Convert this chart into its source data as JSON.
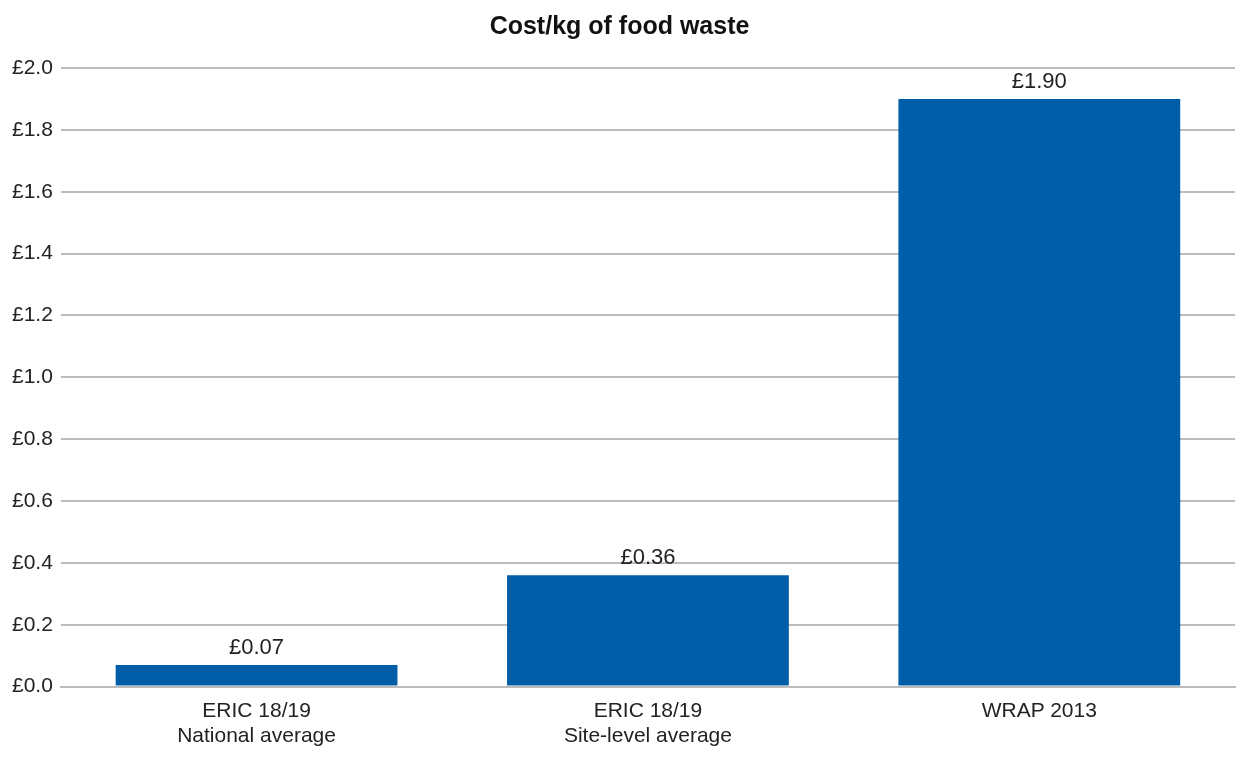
{
  "chart_data": {
    "type": "bar",
    "title": "Cost/kg of food waste",
    "categories": [
      "ERIC 18/19\nNational average",
      "ERIC 18/19\nSite-level average",
      "WRAP 2013"
    ],
    "values": [
      0.07,
      0.36,
      1.9
    ],
    "value_labels": [
      "£0.07",
      "£0.36",
      "£1.90"
    ],
    "color": "#005ea8",
    "ylim": [
      0,
      2
    ],
    "yticks": [
      {
        "value": 0,
        "label": "£0.0"
      },
      {
        "value": 0.2,
        "label": "£0.2"
      },
      {
        "value": 0.4,
        "label": "£0.4"
      },
      {
        "value": 0.6,
        "label": "£0.6"
      },
      {
        "value": 0.8,
        "label": "£0.8"
      },
      {
        "value": 1,
        "label": "£1.0"
      },
      {
        "value": 1.2,
        "label": "£1.2"
      },
      {
        "value": 1.4,
        "label": "£1.4"
      },
      {
        "value": 1.6,
        "label": "£1.6"
      },
      {
        "value": 1.8,
        "label": "£1.8"
      },
      {
        "value": 2,
        "label": "£2.0"
      }
    ],
    "grid": "y",
    "legend": false
  }
}
